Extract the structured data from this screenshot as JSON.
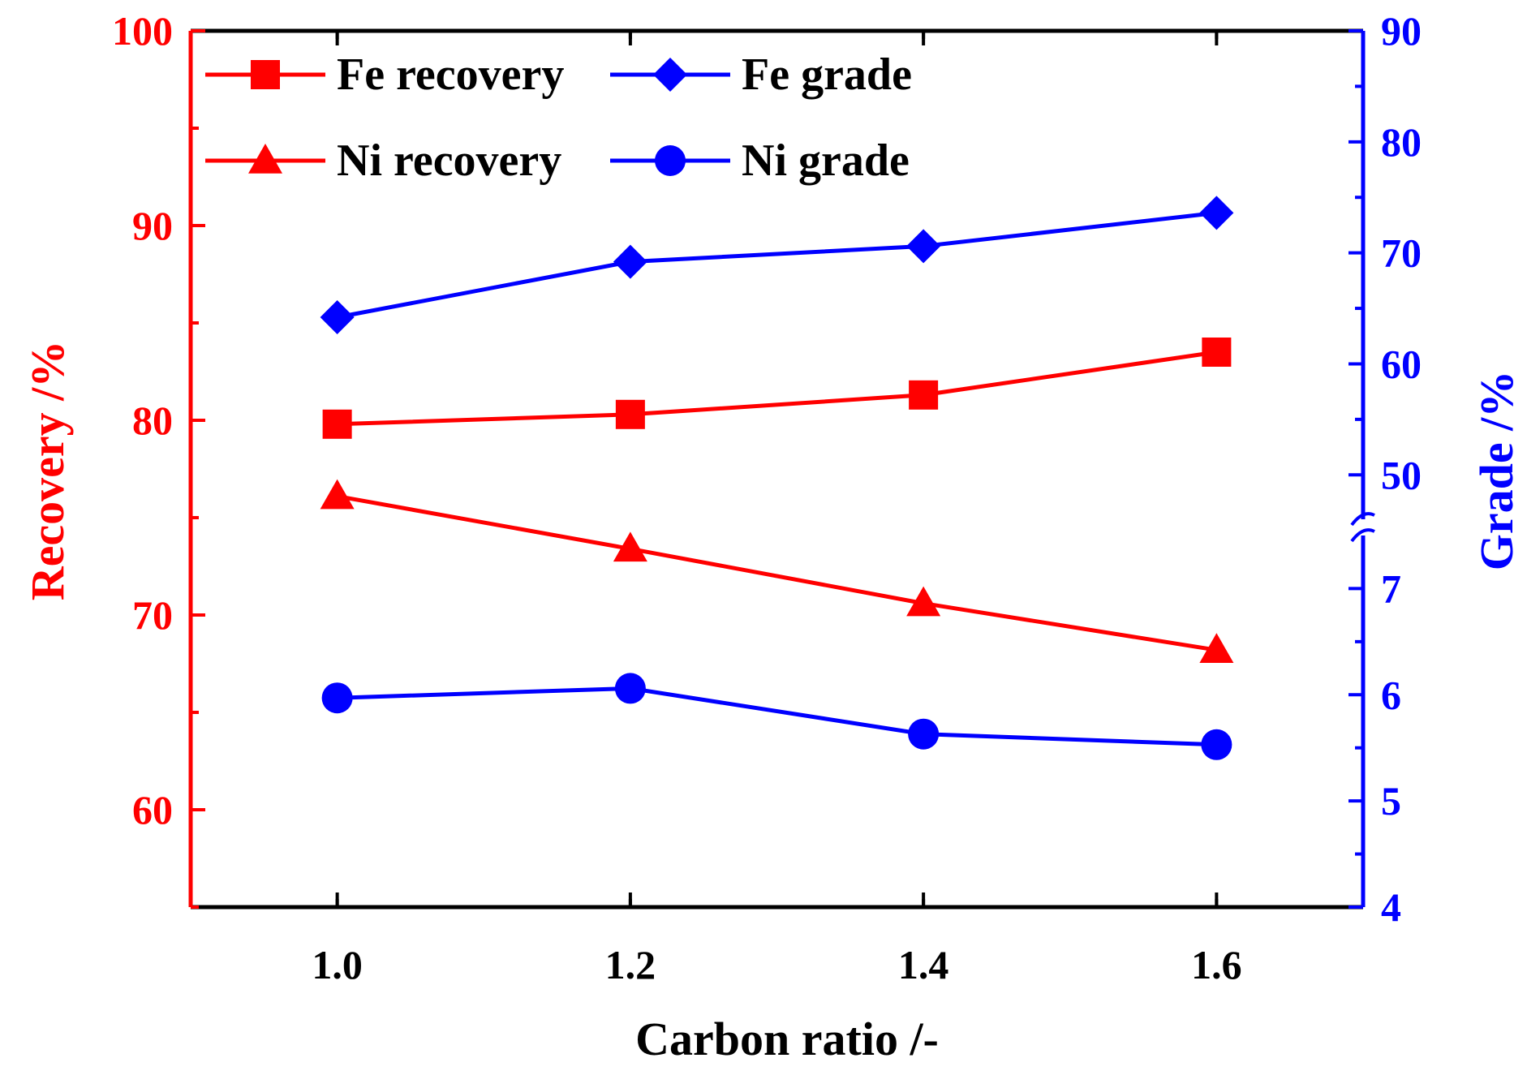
{
  "chart_data": {
    "type": "line",
    "x": [
      1.0,
      1.2,
      1.4,
      1.6
    ],
    "xlabel": "Carbon ratio /-",
    "xlim": [
      0.9,
      1.7
    ],
    "x_ticks": [
      1.0,
      1.2,
      1.4,
      1.6
    ],
    "x_tick_labels": [
      "1.0",
      "1.2",
      "1.4",
      "1.6"
    ],
    "ylabel_left": "Recovery /%",
    "ylim_left": [
      55,
      100
    ],
    "y_ticks_left": [
      60,
      70,
      80,
      90,
      100
    ],
    "y_tick_labels_left": [
      "60",
      "70",
      "80",
      "90",
      "100"
    ],
    "ylabel_right": "Grade /%",
    "right_axis": {
      "broken": true,
      "lower_segment": [
        4,
        7.5
      ],
      "upper_segment": [
        46,
        90
      ]
    },
    "y_ticks_right": [
      4,
      5,
      6,
      7,
      50,
      60,
      70,
      80,
      90
    ],
    "y_tick_labels_right": [
      "4",
      "5",
      "6",
      "7",
      "50",
      "60",
      "70",
      "80",
      "90"
    ],
    "colors": {
      "recovery": "#ff0000",
      "grade": "#0000ff",
      "frame": "#000000"
    },
    "legend_position": "top-left",
    "series": [
      {
        "name": "Fe recovery",
        "axis": "left",
        "marker": "square",
        "color": "#ff0000",
        "values": [
          79.8,
          80.3,
          81.3,
          83.5
        ]
      },
      {
        "name": "Fe grade",
        "axis": "right",
        "marker": "diamond",
        "color": "#0000ff",
        "values": [
          64.2,
          69.2,
          70.6,
          73.6
        ]
      },
      {
        "name": "Ni recovery",
        "axis": "left",
        "marker": "triangle",
        "color": "#ff0000",
        "values": [
          76.1,
          73.4,
          70.6,
          68.2
        ]
      },
      {
        "name": "Ni grade",
        "axis": "right",
        "marker": "circle",
        "color": "#0000ff",
        "values": [
          5.97,
          6.06,
          5.63,
          5.53
        ]
      }
    ]
  }
}
